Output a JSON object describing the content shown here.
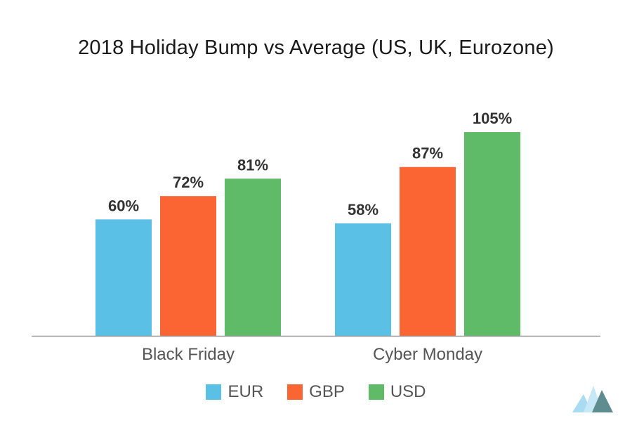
{
  "chart_data": {
    "type": "bar",
    "title": "2018 Holiday Bump vs Average (US, UK, Eurozone)",
    "categories": [
      "Black Friday",
      "Cyber Monday"
    ],
    "series": [
      {
        "name": "EUR",
        "color": "#5bc0e6",
        "values": [
          60,
          58
        ],
        "labels": [
          "60%",
          "58%"
        ]
      },
      {
        "name": "GBP",
        "color": "#fb6433",
        "values": [
          72,
          87
        ],
        "labels": [
          "72%",
          "87%"
        ]
      },
      {
        "name": "USD",
        "color": "#5fbb68",
        "values": [
          81,
          105
        ],
        "labels": [
          "81%",
          "105%"
        ]
      }
    ],
    "xlabel": "",
    "ylabel": "",
    "ylim": [
      0,
      110
    ],
    "grid": false,
    "legend_position": "bottom-center"
  },
  "logo": {
    "icon": "mountain-logo-icon"
  },
  "colors": {
    "axis": "#999999",
    "logo_light": "#a9dcf2",
    "logo_dark": "#5f8d8f"
  }
}
